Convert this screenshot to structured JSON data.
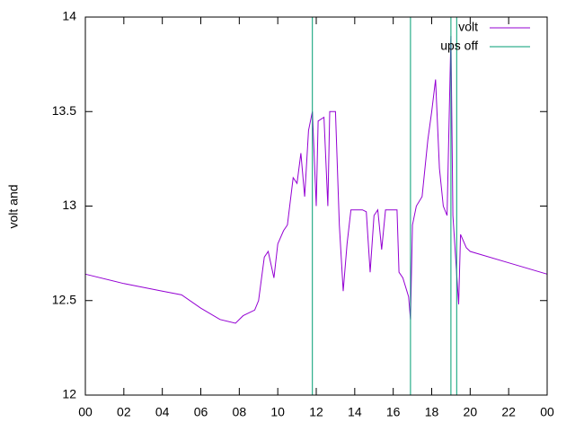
{
  "chart_data": {
    "type": "line",
    "ylabel": "volt and",
    "xlim": [
      0,
      24
    ],
    "xticks": [
      {
        "value": 0,
        "label": "00"
      },
      {
        "value": 2,
        "label": "02"
      },
      {
        "value": 4,
        "label": "04"
      },
      {
        "value": 6,
        "label": "06"
      },
      {
        "value": 8,
        "label": "08"
      },
      10,
      12,
      14,
      16,
      18,
      20,
      22,
      {
        "value": 24,
        "label": "00"
      }
    ],
    "ylim": [
      12,
      14
    ],
    "yticks": [
      12,
      12.5,
      13,
      13.5,
      14
    ],
    "legend": "top-right",
    "series": [
      {
        "name": "volt",
        "color": "#9400d3",
        "x": [
          0,
          2,
          4,
          5,
          6,
          7,
          7.8,
          8.2,
          8.8,
          9.0,
          9.3,
          9.5,
          9.8,
          10,
          10.3,
          10.5,
          10.8,
          11.0,
          11.2,
          11.4,
          11.6,
          11.8,
          12.0,
          12.1,
          12.4,
          12.6,
          12.7,
          13.0,
          13.2,
          13.4,
          13.6,
          13.8,
          14.4,
          14.6,
          14.8,
          15.0,
          15.2,
          15.4,
          15.6,
          16.2,
          16.3,
          16.5,
          16.8,
          16.9,
          17.0,
          17.2,
          17.5,
          17.8,
          18.0,
          18.2,
          18.4,
          18.6,
          18.8,
          19.0,
          19.1,
          19.4,
          19.5,
          19.8,
          20,
          22,
          24
        ],
        "values": [
          12.64,
          12.59,
          12.55,
          12.53,
          12.46,
          12.4,
          12.38,
          12.42,
          12.45,
          12.5,
          12.73,
          12.76,
          12.62,
          12.8,
          12.87,
          12.9,
          13.15,
          13.12,
          13.28,
          13.05,
          13.4,
          13.5,
          13.0,
          13.45,
          13.47,
          13.0,
          13.5,
          13.5,
          12.9,
          12.55,
          12.8,
          12.98,
          12.98,
          12.97,
          12.65,
          12.95,
          12.98,
          12.77,
          12.98,
          12.98,
          12.65,
          12.62,
          12.52,
          12.4,
          12.9,
          13.0,
          13.05,
          13.35,
          13.5,
          13.67,
          13.2,
          13.0,
          12.95,
          13.9,
          12.95,
          12.48,
          12.85,
          12.78,
          12.76,
          12.7,
          12.64
        ]
      },
      {
        "name": "ups off",
        "color": "#009e73",
        "x": [
          0,
          11.8,
          11.8,
          16.9,
          16.9,
          19.0,
          19.0,
          19.3,
          19.3,
          24
        ],
        "values": [
          12,
          12,
          14,
          14,
          12,
          12,
          14,
          14,
          12,
          12
        ]
      }
    ]
  }
}
